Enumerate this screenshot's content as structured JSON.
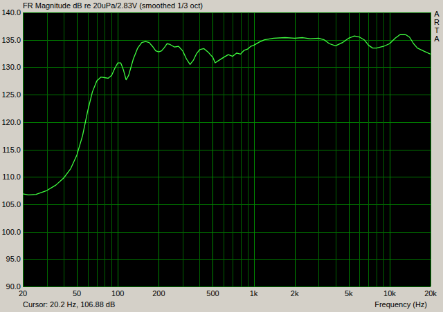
{
  "chart_data": {
    "type": "line",
    "title": "FR Magnitude dB re 20uPa/2.83V (smoothed 1/3 oct)",
    "xlabel": "Frequency (Hz)",
    "annotation": "Cursor: 20.2 Hz, 106.88 dB",
    "brand": "ARTA",
    "log": "x",
    "grid": true,
    "xlim": [
      20,
      20000
    ],
    "ylim": [
      90,
      140
    ],
    "xticks": [
      20,
      50,
      100,
      200,
      500,
      {
        "value": 1000,
        "label": "1k"
      },
      {
        "value": 2000,
        "label": "2k"
      },
      {
        "value": 5000,
        "label": "5k"
      },
      {
        "value": 10000,
        "label": "10k"
      },
      {
        "value": 20000,
        "label": "20k"
      }
    ],
    "minor_xticks": [
      30,
      40,
      60,
      70,
      80,
      90,
      300,
      400,
      600,
      700,
      800,
      900,
      3000,
      4000,
      6000,
      7000,
      8000,
      9000
    ],
    "yticks": [
      {
        "value": 90,
        "label": "90.0"
      },
      {
        "value": 95,
        "label": "95.0"
      },
      {
        "value": 100,
        "label": "100.0"
      },
      {
        "value": 105,
        "label": "105.0"
      },
      {
        "value": 110,
        "label": "110.0"
      },
      {
        "value": 115,
        "label": "115.0"
      },
      {
        "value": 120,
        "label": "120.0"
      },
      {
        "value": 125,
        "label": "125.0"
      },
      {
        "value": 130,
        "label": "130.0"
      },
      {
        "value": 135,
        "label": "135.0"
      },
      {
        "value": 140,
        "label": "140.0"
      }
    ],
    "x": [
      20,
      22,
      25,
      30,
      35,
      40,
      45,
      50,
      55,
      60,
      65,
      70,
      75,
      80,
      85,
      90,
      95,
      100,
      105,
      110,
      115,
      120,
      130,
      140,
      150,
      160,
      170,
      180,
      190,
      200,
      210,
      220,
      230,
      240,
      260,
      280,
      300,
      320,
      340,
      360,
      380,
      400,
      430,
      460,
      500,
      520,
      550,
      600,
      650,
      700,
      750,
      800,
      850,
      900,
      950,
      1000,
      1100,
      1200,
      1400,
      1700,
      2000,
      2300,
      2600,
      3000,
      3300,
      3600,
      4000,
      4500,
      5000,
      5500,
      6000,
      6500,
      7000,
      7500,
      8000,
      9000,
      10000,
      11000,
      12000,
      13000,
      14000,
      15000,
      16000,
      18000,
      20000
    ],
    "series": [
      {
        "name": "FR Magnitude",
        "color": "#40ff40",
        "values": [
          106.9,
          106.7,
          106.8,
          107.5,
          108.5,
          109.8,
          111.5,
          114,
          117.5,
          122,
          125.5,
          127.5,
          128.2,
          128.1,
          128,
          128.5,
          129.8,
          130.8,
          130.8,
          129.5,
          127.7,
          128.5,
          131.5,
          133.5,
          134.5,
          134.7,
          134.5,
          133.8,
          133,
          132.8,
          133,
          133.6,
          134.3,
          134.2,
          133.7,
          133.8,
          133,
          131.5,
          130.5,
          131.3,
          132.5,
          133.2,
          133.4,
          132.8,
          131.8,
          130.8,
          131.2,
          131.8,
          132.3,
          132,
          132.6,
          132.4,
          133.1,
          133.3,
          133.8,
          134,
          134.6,
          135,
          135.3,
          135.4,
          135.3,
          135.4,
          135.2,
          135.3,
          135,
          134.3,
          133.9,
          134.5,
          135.3,
          135.7,
          135.5,
          135,
          134,
          133.5,
          133.5,
          133.8,
          134.3,
          135.3,
          136,
          136,
          135.5,
          134.3,
          133.5,
          132.9,
          132.4
        ]
      }
    ]
  }
}
